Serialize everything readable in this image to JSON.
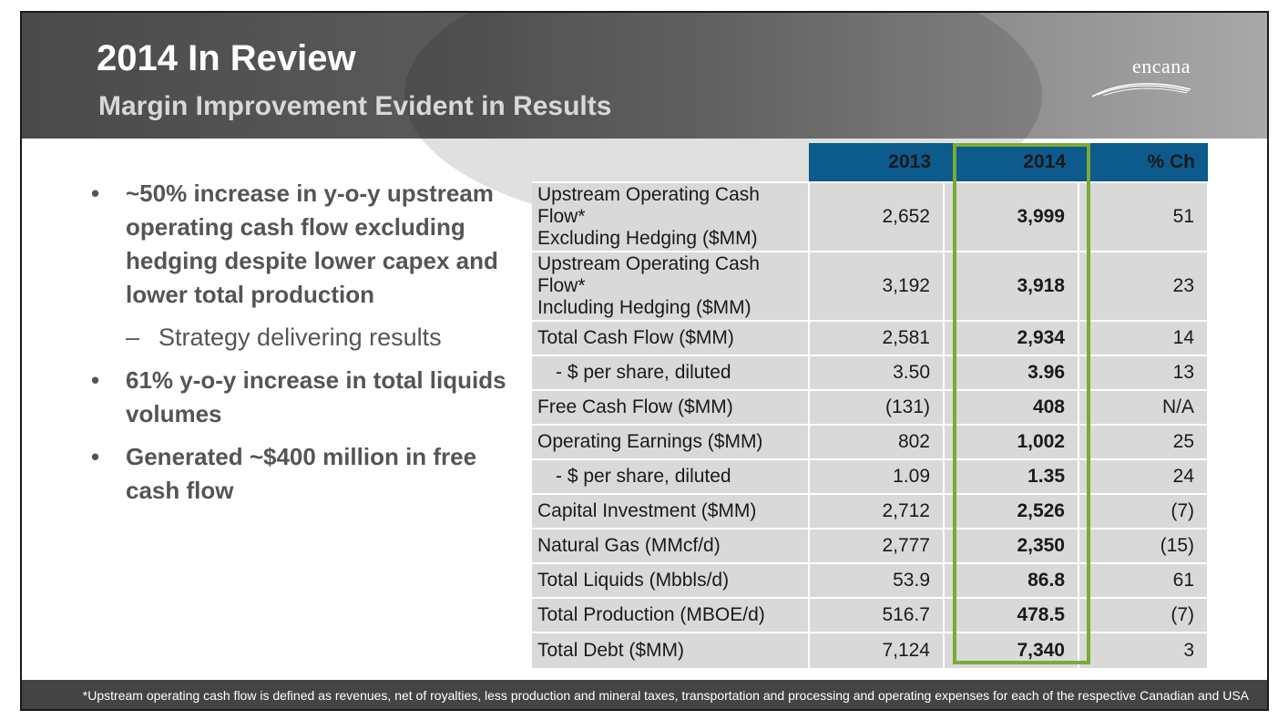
{
  "header": {
    "title": "2014 In Review",
    "subtitle": "Margin Improvement Evident in Results",
    "logo_text": "encana"
  },
  "bullets": [
    {
      "type": "bullet",
      "marker": "•",
      "text": "~50% increase in y-o-y upstream operating cash flow excluding hedging despite lower capex and lower total production"
    },
    {
      "type": "sub",
      "marker": "–",
      "text": "Strategy delivering results"
    },
    {
      "type": "bullet",
      "marker": "•",
      "text": "61% y-o-y increase in total liquids volumes"
    },
    {
      "type": "bullet",
      "marker": "•",
      "text": "Generated ~$400 million in free cash flow"
    }
  ],
  "table": {
    "headers": [
      "2013",
      "2014",
      "% Ch"
    ],
    "rows": [
      {
        "label_line1": "Upstream Operating Cash Flow*",
        "label_line2": "Excluding Hedging ($MM)",
        "y2013": "2,652",
        "y2014": "3,999",
        "ch": "51"
      },
      {
        "label_line1": "Upstream Operating Cash Flow*",
        "label_line2": "Including Hedging ($MM)",
        "y2013": "3,192",
        "y2014": "3,918",
        "ch": "23"
      },
      {
        "label": "Total Cash Flow ($MM)",
        "y2013": "2,581",
        "y2014": "2,934",
        "ch": "14"
      },
      {
        "label": "- $ per share, diluted",
        "y2013": "3.50",
        "y2014": "3.96",
        "ch": "13"
      },
      {
        "label": "Free Cash Flow ($MM)",
        "y2013": "(131)",
        "y2014": "408",
        "ch": "N/A"
      },
      {
        "label": "Operating Earnings ($MM)",
        "y2013": "802",
        "y2014": "1,002",
        "ch": "25"
      },
      {
        "label": "- $ per share, diluted",
        "y2013": "1.09",
        "y2014": "1.35",
        "ch": "24"
      },
      {
        "label": "Capital Investment ($MM)",
        "y2013": "2,712",
        "y2014": "2,526",
        "ch": "(7)"
      },
      {
        "label": "Natural Gas (MMcf/d)",
        "y2013": "2,777",
        "y2014": "2,350",
        "ch": "(15)"
      },
      {
        "label": "Total Liquids (Mbbls/d)",
        "y2013": "53.9",
        "y2014": "86.8",
        "ch": "61"
      },
      {
        "label": "Total Production (MBOE/d)",
        "y2013": "516.7",
        "y2014": "478.5",
        "ch": "(7)"
      },
      {
        "label": "Total Debt ($MM)",
        "y2013": "7,124",
        "y2014": "7,340",
        "ch": "3"
      }
    ]
  },
  "footer": {
    "note": "*Upstream operating cash flow is defined as revenues, net of royalties, less production and mineral taxes, transportation and processing and operating expenses for each of the respective Canadian and USA operations"
  },
  "colors": {
    "header_blue": "#0d5a8c",
    "highlight_green": "#7aab36",
    "cell_gray": "#d9d9d9",
    "footer_bg": "#444444"
  }
}
